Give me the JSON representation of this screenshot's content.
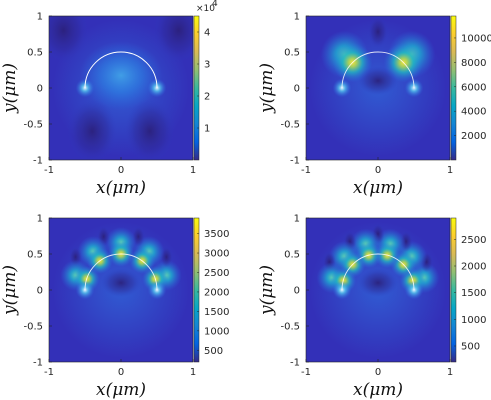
{
  "chart_data": [
    {
      "type": "heatmap",
      "xlabel": "x(μm)",
      "ylabel": "y(μm)",
      "xlim": [
        -1,
        1
      ],
      "ylim": [
        -1,
        1
      ],
      "xticks": [
        "-1",
        "0",
        "1"
      ],
      "yticks": [
        "1",
        "0.5",
        "0",
        "-0.5",
        "-1"
      ],
      "colorbar": {
        "min": 0,
        "max": 45000,
        "ticks": [
          "4",
          "3",
          "2",
          "1"
        ],
        "tick_values": [
          40000,
          30000,
          20000,
          10000
        ],
        "multiplier": "×10",
        "exponent": "4"
      },
      "mode_lobes": 0,
      "overlay": "white semicircle, radius 0.5 μm"
    },
    {
      "type": "heatmap",
      "xlabel": "x(μm)",
      "ylabel": "y(μm)",
      "xlim": [
        -1,
        1
      ],
      "ylim": [
        -1,
        1
      ],
      "xticks": [
        "-1",
        "0",
        "1"
      ],
      "yticks": [
        "1",
        "0.5",
        "0",
        "-0.5",
        "-1"
      ],
      "colorbar": {
        "min": 0,
        "max": 11800,
        "ticks": [
          "10000",
          "8000",
          "6000",
          "4000",
          "2000"
        ],
        "tick_values": [
          10000,
          8000,
          6000,
          4000,
          2000
        ]
      },
      "mode_lobes": 2
    },
    {
      "type": "heatmap",
      "xlabel": "x(μm)",
      "ylabel": "y(μm)",
      "xlim": [
        -1,
        1
      ],
      "ylim": [
        -1,
        1
      ],
      "xticks": [
        "-1",
        "0",
        "1"
      ],
      "yticks": [
        "1",
        "0.5",
        "0",
        "-0.5",
        "-1"
      ],
      "colorbar": {
        "min": 200,
        "max": 3900,
        "ticks": [
          "3500",
          "3000",
          "2500",
          "2000",
          "1500",
          "1000",
          "500"
        ],
        "tick_values": [
          3500,
          3000,
          2500,
          2000,
          1500,
          1000,
          500
        ]
      },
      "mode_lobes": 5
    },
    {
      "type": "heatmap",
      "xlabel": "x(μm)",
      "ylabel": "y(μm)",
      "xlim": [
        -1,
        1
      ],
      "ylim": [
        -1,
        1
      ],
      "xticks": [
        "-1",
        "0",
        "1"
      ],
      "yticks": [
        "1",
        "0.5",
        "0",
        "-0.5",
        "-1"
      ],
      "colorbar": {
        "min": 200,
        "max": 2900,
        "ticks": [
          "2500",
          "2000",
          "1500",
          "1000",
          "500"
        ],
        "tick_values": [
          2500,
          2000,
          1500,
          1000,
          500
        ]
      },
      "mode_lobes": 6
    }
  ]
}
